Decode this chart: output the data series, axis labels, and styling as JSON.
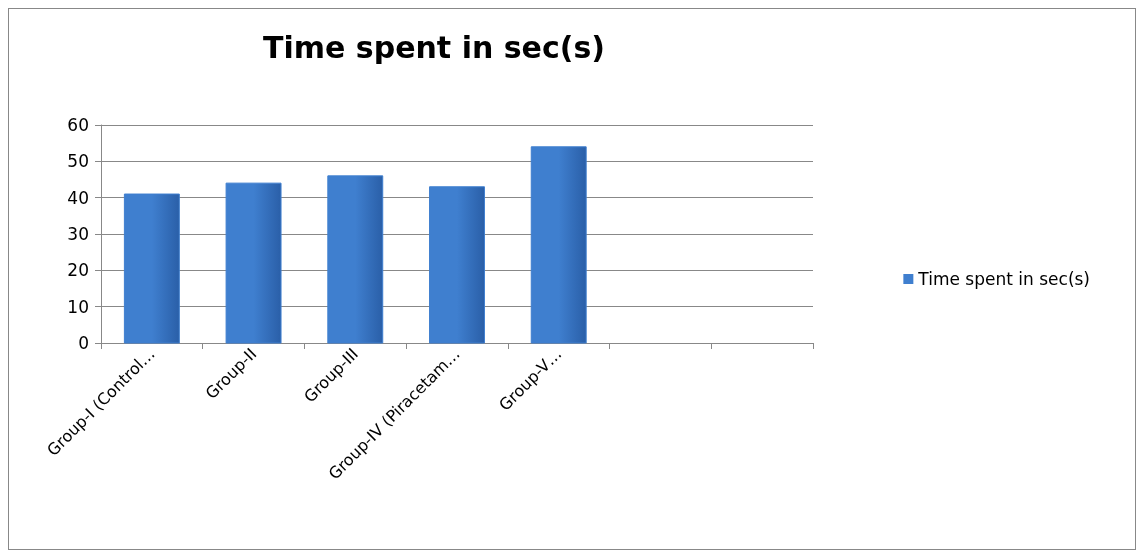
{
  "chart_data": {
    "type": "bar",
    "title": "Time spent in sec(s)",
    "categories": [
      "Group-I (Control…",
      "Group-II",
      "Group-III",
      "Group-IV (Piracetam…",
      "Group-V…",
      null,
      null
    ],
    "series": [
      {
        "name": "Time spent in sec(s)",
        "color": "#3f7fcf",
        "values": [
          41,
          44,
          46,
          43,
          54,
          null,
          null
        ]
      }
    ],
    "ylim": [
      0,
      60
    ],
    "yticks": [
      0,
      10,
      20,
      30,
      40,
      50,
      60
    ],
    "grid": "y",
    "legend": "right"
  }
}
